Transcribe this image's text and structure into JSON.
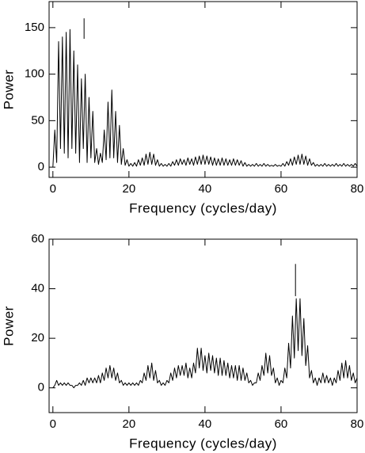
{
  "chart_data": [
    {
      "type": "line",
      "xlabel": "Frequency (cycles/day)",
      "ylabel": "Power",
      "xlim": [
        -1,
        80
      ],
      "ylim": [
        -11,
        178
      ],
      "xticks": [
        0,
        20,
        40,
        60,
        80
      ],
      "yticks": [
        0,
        50,
        100,
        150
      ],
      "color": "#000000",
      "x": [
        0,
        0.5,
        1,
        1.5,
        2,
        2.5,
        3,
        3.5,
        4,
        4.5,
        5,
        5.5,
        6,
        6.5,
        7,
        7.5,
        8,
        8.5,
        9,
        9.5,
        10,
        10.5,
        11,
        11.5,
        12,
        12.5,
        13,
        13.5,
        14,
        14.5,
        15,
        15.5,
        16,
        16.5,
        17,
        17.5,
        18,
        18.5,
        19,
        19.5,
        20,
        20.5,
        21,
        21.5,
        22,
        22.5,
        23,
        23.5,
        24,
        24.5,
        25,
        25.5,
        26,
        26.5,
        27,
        27.5,
        28,
        28.5,
        29,
        29.5,
        30,
        30.5,
        31,
        31.5,
        32,
        32.5,
        33,
        33.5,
        34,
        34.5,
        35,
        35.5,
        36,
        36.5,
        37,
        37.5,
        38,
        38.5,
        39,
        39.5,
        40,
        40.5,
        41,
        41.5,
        42,
        42.5,
        43,
        43.5,
        44,
        44.5,
        45,
        45.5,
        46,
        46.5,
        47,
        47.5,
        48,
        48.5,
        49,
        49.5,
        50,
        50.5,
        51,
        51.5,
        52,
        52.5,
        53,
        53.5,
        54,
        54.5,
        55,
        55.5,
        56,
        56.5,
        57,
        57.5,
        58,
        58.5,
        59,
        59.5,
        60,
        60.5,
        61,
        61.5,
        62,
        62.5,
        63,
        63.5,
        64,
        64.5,
        65,
        65.5,
        66,
        66.5,
        67,
        67.5,
        68,
        68.5,
        69,
        69.5,
        70,
        70.5,
        71,
        71.5,
        72,
        72.5,
        73,
        73.5,
        74,
        74.5,
        75,
        75.5,
        76,
        76.5,
        77,
        77.5,
        78,
        78.5,
        79,
        79.5,
        80
      ],
      "values": [
        0,
        40,
        5,
        135,
        20,
        140,
        15,
        145,
        10,
        148,
        20,
        125,
        15,
        110,
        5,
        95,
        20,
        100,
        5,
        75,
        10,
        60,
        5,
        20,
        3,
        15,
        5,
        40,
        8,
        70,
        10,
        83,
        10,
        60,
        5,
        45,
        3,
        20,
        2,
        8,
        1,
        4,
        1,
        5,
        1,
        8,
        2,
        10,
        2,
        14,
        3,
        16,
        3,
        14,
        2,
        8,
        1,
        4,
        1,
        3,
        1,
        4,
        1,
        6,
        2,
        8,
        2,
        9,
        3,
        8,
        2,
        10,
        3,
        9,
        2,
        11,
        3,
        12,
        3,
        13,
        3,
        12,
        3,
        11,
        2,
        10,
        2,
        9,
        2,
        10,
        2,
        9,
        2,
        8,
        2,
        9,
        2,
        8,
        2,
        7,
        1,
        5,
        1,
        3,
        1,
        3,
        1,
        4,
        1,
        3,
        1,
        4,
        1,
        3,
        1,
        2,
        1,
        3,
        1,
        2,
        1,
        4,
        1,
        6,
        2,
        9,
        2,
        11,
        3,
        13,
        3,
        14,
        3,
        12,
        2,
        9,
        2,
        5,
        1,
        3,
        1,
        3,
        1,
        4,
        1,
        3,
        1,
        3,
        1,
        4,
        1,
        3,
        1,
        4,
        1,
        3,
        1,
        3,
        1,
        4,
        1
      ],
      "markers": [
        {
          "x": 8.2,
          "y": [
            138,
            160
          ]
        }
      ]
    },
    {
      "type": "line",
      "xlabel": "Frequency (cycles/day)",
      "ylabel": "Power",
      "xlim": [
        -1,
        80
      ],
      "ylim": [
        -10,
        60
      ],
      "xticks": [
        0,
        20,
        40,
        60,
        80
      ],
      "yticks": [
        0,
        20,
        40,
        60
      ],
      "color": "#000000",
      "x": [
        0,
        0.5,
        1,
        1.5,
        2,
        2.5,
        3,
        3.5,
        4,
        4.5,
        5,
        5.5,
        6,
        6.5,
        7,
        7.5,
        8,
        8.5,
        9,
        9.5,
        10,
        10.5,
        11,
        11.5,
        12,
        12.5,
        13,
        13.5,
        14,
        14.5,
        15,
        15.5,
        16,
        16.5,
        17,
        17.5,
        18,
        18.5,
        19,
        19.5,
        20,
        20.5,
        21,
        21.5,
        22,
        22.5,
        23,
        23.5,
        24,
        24.5,
        25,
        25.5,
        26,
        26.5,
        27,
        27.5,
        28,
        28.5,
        29,
        29.5,
        30,
        30.5,
        31,
        31.5,
        32,
        32.5,
        33,
        33.5,
        34,
        34.5,
        35,
        35.5,
        36,
        36.5,
        37,
        37.5,
        38,
        38.5,
        39,
        39.5,
        40,
        40.5,
        41,
        41.5,
        42,
        42.5,
        43,
        43.5,
        44,
        44.5,
        45,
        45.5,
        46,
        46.5,
        47,
        47.5,
        48,
        48.5,
        49,
        49.5,
        50,
        50.5,
        51,
        51.5,
        52,
        52.5,
        53,
        53.5,
        54,
        54.5,
        55,
        55.5,
        56,
        56.5,
        57,
        57.5,
        58,
        58.5,
        59,
        59.5,
        60,
        60.5,
        61,
        61.5,
        62,
        62.5,
        63,
        63.5,
        64,
        64.5,
        65,
        65.5,
        66,
        66.5,
        67,
        67.5,
        68,
        68.5,
        69,
        69.5,
        70,
        70.5,
        71,
        71.5,
        72,
        72.5,
        73,
        73.5,
        74,
        74.5,
        75,
        75.5,
        76,
        76.5,
        77,
        77.5,
        78,
        78.5,
        79,
        79.5,
        80
      ],
      "values": [
        0,
        1,
        3,
        1,
        2,
        1,
        2,
        1,
        2,
        1,
        1,
        0,
        1,
        1,
        2,
        1,
        3,
        1,
        4,
        2,
        4,
        2,
        4,
        2,
        5,
        2,
        6,
        3,
        8,
        4,
        9,
        4,
        8,
        3,
        6,
        2,
        3,
        1,
        2,
        1,
        2,
        1,
        2,
        1,
        2,
        1,
        3,
        2,
        6,
        3,
        9,
        4,
        10,
        3,
        7,
        2,
        3,
        1,
        2,
        1,
        3,
        2,
        6,
        3,
        8,
        4,
        9,
        5,
        9,
        5,
        10,
        4,
        8,
        4,
        10,
        6,
        16,
        8,
        16,
        7,
        13,
        6,
        14,
        7,
        13,
        6,
        12,
        5,
        12,
        5,
        11,
        5,
        10,
        4,
        9,
        4,
        9,
        3,
        9,
        3,
        8,
        3,
        6,
        2,
        3,
        1,
        2,
        2,
        6,
        3,
        9,
        5,
        14,
        6,
        13,
        5,
        8,
        2,
        4,
        1,
        3,
        2,
        8,
        4,
        18,
        8,
        29,
        12,
        36,
        15,
        36,
        13,
        28,
        9,
        17,
        4,
        7,
        2,
        4,
        1,
        4,
        2,
        6,
        2,
        5,
        2,
        4,
        1,
        4,
        2,
        7,
        3,
        10,
        4,
        11,
        4,
        9,
        3,
        6,
        2,
        4
      ],
      "markers": [
        {
          "x": 63.8,
          "y": [
            37,
            50
          ]
        }
      ]
    }
  ]
}
